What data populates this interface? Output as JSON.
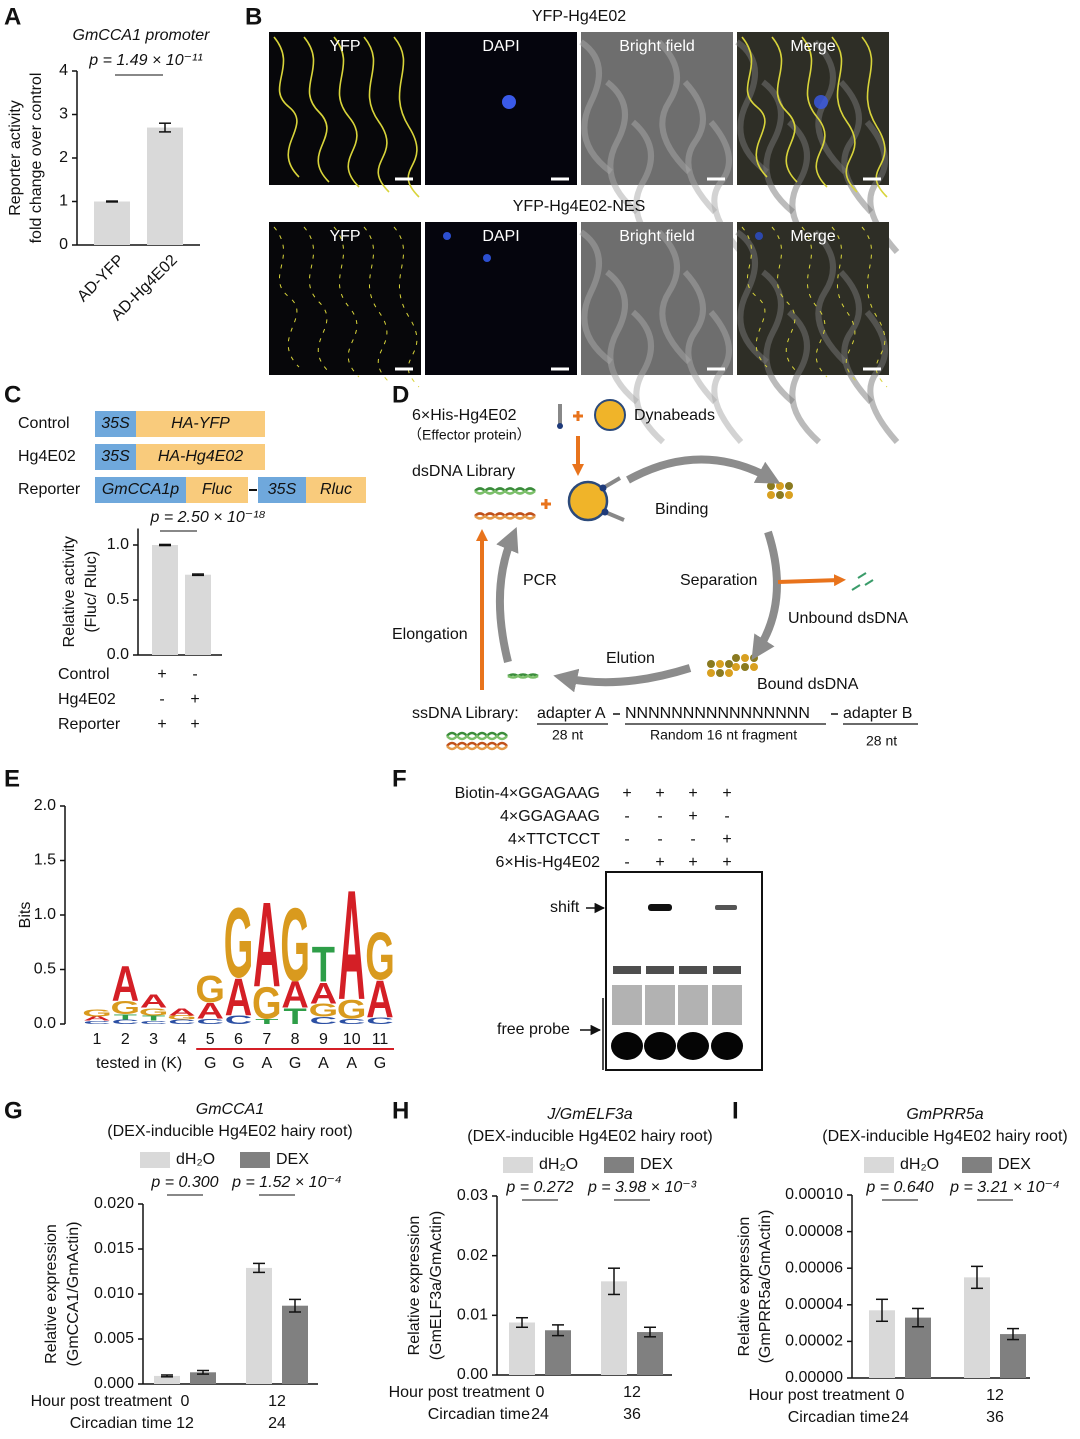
{
  "panel_labels": [
    "A",
    "B",
    "C",
    "D",
    "E",
    "F",
    "G",
    "H",
    "I"
  ],
  "microscopy": {
    "rows": [
      {
        "title": "YFP-Hg4E02",
        "channels": [
          "YFP",
          "DAPI",
          "Bright field",
          "Merge"
        ]
      },
      {
        "title": "YFP-Hg4E02-NES",
        "channels": [
          "YFP",
          "DAPI",
          "Bright field",
          "Merge"
        ]
      }
    ]
  },
  "constructs": [
    {
      "label": "Control",
      "parts": [
        "35S",
        "HA-YFP"
      ]
    },
    {
      "label": "Hg4E02",
      "parts": [
        "35S",
        "HA-Hg4E02"
      ]
    },
    {
      "label": "Reporter",
      "parts": [
        "GmCCA1p",
        "Fluc",
        "35S",
        "Rluc"
      ]
    }
  ],
  "selex": {
    "effector": "6×His-Hg4E02",
    "effector_note": "（Effector protein）",
    "dynabeads": "Dynabeads",
    "library": "dsDNA Library",
    "binding": "Binding",
    "separation": "Separation",
    "unbound": "Unbound dsDNA",
    "bound": "Bound dsDNA",
    "elution": "Elution",
    "pcr": "PCR",
    "elongation": "Elongation",
    "ss_library": "ssDNA Library:",
    "adapter_a": "adapter A",
    "adapter_a_len": "28 nt",
    "random": "NNNNNNNNNNNNNNNN",
    "random_len": "Random 16 nt fragment",
    "adapter_b": "adapter B",
    "adapter_b_len": "28 nt"
  },
  "gel": {
    "rows": [
      {
        "label": "Biotin-4×GGAGAAG",
        "signs": [
          "+",
          "+",
          "+",
          "+"
        ]
      },
      {
        "label": "4×GGAGAAG",
        "signs": [
          "-",
          "-",
          "+",
          "-"
        ]
      },
      {
        "label": "4×TTCTCCT",
        "signs": [
          "-",
          "-",
          "-",
          "+"
        ]
      },
      {
        "label": "6×His-Hg4E02",
        "signs": [
          "-",
          "+",
          "+",
          "+"
        ]
      }
    ],
    "shift": "shift",
    "free_probe": "free probe"
  },
  "chart_data": [
    {
      "type": "bar",
      "title": "GmCCA1 promoter",
      "annotation": "p = 1.49 × 10⁻¹¹",
      "ylabel": [
        "Reporter activity",
        "fold change over control"
      ],
      "categories": [
        "AD-YFP",
        "AD-Hg4E02"
      ],
      "values": [
        1.0,
        2.7
      ],
      "errors": [
        0.01,
        0.1
      ],
      "color": "#d9d9d9",
      "ylim": [
        0,
        4
      ],
      "yticks": [
        0,
        1,
        2,
        3,
        4
      ]
    },
    {
      "type": "bar",
      "annotation": "p = 2.50 × 10⁻¹⁸",
      "ylabel": [
        "Relative activity",
        "(Fluc/ Rluc)"
      ],
      "categories": [
        null,
        null
      ],
      "values": [
        1.0,
        0.73
      ],
      "errors": [
        0.005,
        0.006
      ],
      "color": "#d9d9d9",
      "ylim": [
        0,
        1.15
      ],
      "yticks": [
        {
          "value": 0,
          "label": "0.0"
        },
        {
          "value": 0.5,
          "label": "0.5"
        },
        {
          "value": 1,
          "label": "1.0"
        }
      ],
      "rows": [
        {
          "label": "Control",
          "signs": [
            "+",
            "-"
          ]
        },
        {
          "label": "Hg4E02",
          "signs": [
            "-",
            "+"
          ]
        },
        {
          "label": "Reporter",
          "signs": [
            "+",
            "+"
          ]
        }
      ]
    },
    {
      "type": "logo",
      "ylabel": "Bits",
      "ylim": [
        0,
        2
      ],
      "yticks": [
        {
          "value": 0,
          "label": "0.0"
        },
        {
          "value": 0.5,
          "label": "0.5"
        },
        {
          "value": 1,
          "label": "1.0"
        },
        {
          "value": 1.5,
          "label": "1.5"
        },
        {
          "value": 2,
          "label": "2.0"
        }
      ],
      "x": [
        1,
        2,
        3,
        4,
        5,
        6,
        7,
        8,
        9,
        10,
        11
      ],
      "xlabel": "tested in (K)",
      "motif": [
        "G",
        "G",
        "A",
        "G",
        "A",
        "A",
        "G"
      ],
      "colors": {
        "A": "#d41f26",
        "G": "#d99a1e",
        "C": "#2b4fa3",
        "T": "#2e9e48"
      },
      "stacks": [
        [
          {
            "letter": "C",
            "bits": 0.03
          },
          {
            "letter": "A",
            "bits": 0.04
          },
          {
            "letter": "G",
            "bits": 0.07
          }
        ],
        [
          {
            "letter": "C",
            "bits": 0.04
          },
          {
            "letter": "T",
            "bits": 0.05
          },
          {
            "letter": "G",
            "bits": 0.12
          },
          {
            "letter": "A",
            "bits": 0.33
          }
        ],
        [
          {
            "letter": "C",
            "bits": 0.03
          },
          {
            "letter": "T",
            "bits": 0.05
          },
          {
            "letter": "G",
            "bits": 0.07
          },
          {
            "letter": "A",
            "bits": 0.12
          }
        ],
        [
          {
            "letter": "C",
            "bits": 0.04
          },
          {
            "letter": "G",
            "bits": 0.04
          },
          {
            "letter": "A",
            "bits": 0.07
          }
        ],
        [
          {
            "letter": "C",
            "bits": 0.05
          },
          {
            "letter": "A",
            "bits": 0.15
          },
          {
            "letter": "G",
            "bits": 0.25
          }
        ],
        [
          {
            "letter": "C",
            "bits": 0.08
          },
          {
            "letter": "A",
            "bits": 0.35
          },
          {
            "letter": "G",
            "bits": 0.66
          }
        ],
        [
          {
            "letter": "T",
            "bits": 0.05
          },
          {
            "letter": "G",
            "bits": 0.3
          },
          {
            "letter": "A",
            "bits": 0.8
          }
        ],
        [
          {
            "letter": "T",
            "bits": 0.15
          },
          {
            "letter": "A",
            "bits": 0.25
          },
          {
            "letter": "G",
            "bits": 0.69
          }
        ],
        [
          {
            "letter": "C",
            "bits": 0.07
          },
          {
            "letter": "G",
            "bits": 0.12
          },
          {
            "letter": "A",
            "bits": 0.2
          },
          {
            "letter": "T",
            "bits": 0.33
          }
        ],
        [
          {
            "letter": "C",
            "bits": 0.05
          },
          {
            "letter": "G",
            "bits": 0.18
          },
          {
            "letter": "A",
            "bits": 1.04
          }
        ],
        [
          {
            "letter": "C",
            "bits": 0.06
          },
          {
            "letter": "A",
            "bits": 0.35
          },
          {
            "letter": "G",
            "bits": 0.45
          }
        ]
      ]
    },
    {
      "type": "bar",
      "title": "GmCCA1",
      "subtitle": "(DEX-inducible Hg4E02 hairy root)",
      "annotations": [
        "p = 0.300",
        "p = 1.52 × 10⁻⁴"
      ],
      "ylabel": [
        "Relative expression",
        "(GmCCA1/GmActin)"
      ],
      "xlabel": "Hour post treatment",
      "categories": [
        "0",
        "12"
      ],
      "x2label": "Circadian time",
      "categories2": [
        "12",
        "24"
      ],
      "series": [
        {
          "name": "dH₂O",
          "color": "#d9d9d9",
          "values": [
            0.0009,
            0.0129
          ],
          "errors": [
            0.0001,
            0.0005
          ]
        },
        {
          "name": "DEX",
          "color": "#808080",
          "values": [
            0.0013,
            0.0087
          ],
          "errors": [
            0.0002,
            0.0007
          ]
        }
      ],
      "ylim": [
        0,
        0.02
      ],
      "yticks": [
        {
          "value": 0,
          "label": "0.000"
        },
        {
          "value": 0.005,
          "label": "0.005"
        },
        {
          "value": 0.01,
          "label": "0.010"
        },
        {
          "value": 0.015,
          "label": "0.015"
        },
        {
          "value": 0.02,
          "label": "0.020"
        }
      ]
    },
    {
      "type": "bar",
      "title": "J/GmELF3a",
      "subtitle": "(DEX-inducible Hg4E02 hairy root)",
      "annotations": [
        "p = 0.272",
        "p = 3.98 × 10⁻³"
      ],
      "ylabel": [
        "Relative expression",
        "(GmELF3a/GmActin)"
      ],
      "xlabel": "Hour post treatment",
      "categories": [
        "0",
        "12"
      ],
      "x2label": "Circadian time",
      "categories2": [
        "24",
        "36"
      ],
      "series": [
        {
          "name": "dH₂O",
          "color": "#d9d9d9",
          "values": [
            0.0088,
            0.0157
          ],
          "errors": [
            0.0008,
            0.0022
          ]
        },
        {
          "name": "DEX",
          "color": "#808080",
          "values": [
            0.0075,
            0.0072
          ],
          "errors": [
            0.0009,
            0.0008
          ]
        }
      ],
      "ylim": [
        0,
        0.03
      ],
      "yticks": [
        {
          "value": 0,
          "label": "0.00"
        },
        {
          "value": 0.01,
          "label": "0.01"
        },
        {
          "value": 0.02,
          "label": "0.02"
        },
        {
          "value": 0.03,
          "label": "0.03"
        }
      ]
    },
    {
      "type": "bar",
      "title": "GmPRR5a",
      "subtitle": "(DEX-inducible Hg4E02 hairy root)",
      "annotations": [
        "p = 0.640",
        "p = 3.21 × 10⁻⁴"
      ],
      "ylabel": [
        "Relative expression",
        "(GmPRR5a/GmActin)"
      ],
      "xlabel": "Hour post treatment",
      "categories": [
        "0",
        "12"
      ],
      "x2label": "Circadian time",
      "categories2": [
        "24",
        "36"
      ],
      "series": [
        {
          "name": "dH₂O",
          "color": "#d9d9d9",
          "values": [
            3.7e-05,
            5.5e-05
          ],
          "errors": [
            6e-06,
            6e-06
          ]
        },
        {
          "name": "DEX",
          "color": "#808080",
          "values": [
            3.3e-05,
            2.4e-05
          ],
          "errors": [
            5e-06,
            3e-06
          ]
        }
      ],
      "ylim": [
        0,
        0.0001
      ],
      "yticks": [
        {
          "value": 0,
          "label": "0.00000"
        },
        {
          "value": 2e-05,
          "label": "0.00002"
        },
        {
          "value": 4e-05,
          "label": "0.00004"
        },
        {
          "value": 6e-05,
          "label": "0.00006"
        },
        {
          "value": 8e-05,
          "label": "0.00008"
        },
        {
          "value": 0.0001,
          "label": "0.00010"
        }
      ]
    }
  ]
}
